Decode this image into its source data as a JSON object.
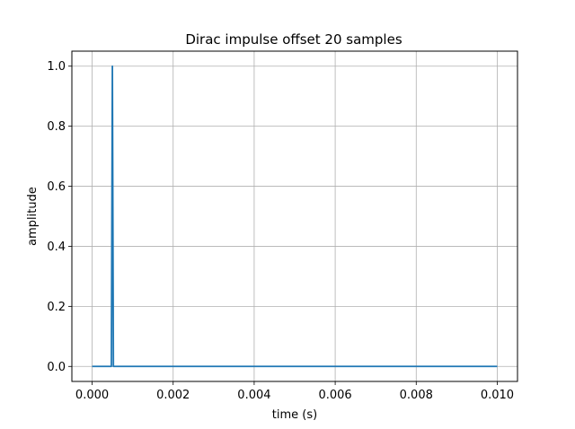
{
  "chart_data": {
    "type": "line",
    "title": "Dirac impulse offset 20 samples",
    "xlabel": "time (s)",
    "ylabel": "amplitude",
    "xlim": [
      -0.0005,
      0.0105
    ],
    "ylim": [
      -0.05,
      1.05
    ],
    "xticks": [
      0.0,
      0.002,
      0.004,
      0.006,
      0.008,
      0.01
    ],
    "xtick_labels": [
      "0.000",
      "0.002",
      "0.004",
      "0.006",
      "0.008",
      "0.010"
    ],
    "yticks": [
      0.0,
      0.2,
      0.4,
      0.6,
      0.8,
      1.0
    ],
    "ytick_labels": [
      "0.0",
      "0.2",
      "0.4",
      "0.6",
      "0.8",
      "1.0"
    ],
    "grid": true,
    "line_color": "#1f77b4",
    "series": [
      {
        "x": [
          0.0,
          0.000475,
          0.0005,
          0.000525,
          0.01
        ],
        "y": [
          0.0,
          0.0,
          1.0,
          0.0,
          0.0
        ]
      }
    ]
  }
}
